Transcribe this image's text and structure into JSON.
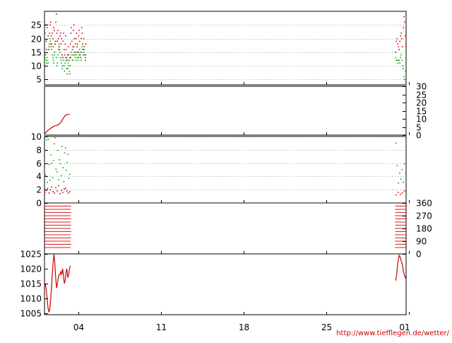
{
  "credit": "http://www.tiefflegen.de/wetter/",
  "colors": {
    "red": "#cc0000",
    "green": "#00aa00",
    "grid": "#a0a0a0",
    "frame": "#000000"
  },
  "chart_data": [
    {
      "name": "temperature",
      "type": "scatter",
      "ylim": [
        3,
        30
      ],
      "yticks": [
        5,
        10,
        15,
        20,
        25
      ],
      "y_axis_side": "left",
      "grid": true,
      "series": [
        {
          "color": "#cc0000",
          "x": [
            0,
            0.3,
            0.6,
            0.9,
            1.2,
            1.5,
            1.8,
            2.1,
            2.4,
            2.7,
            3.0,
            3.3,
            3.6,
            3.9,
            4.2,
            4.5,
            4.8,
            5.1,
            5.4,
            5.7,
            6.0,
            6.3,
            6.6,
            6.9,
            7.2,
            7.5,
            7.8,
            8.1,
            8.4,
            8.7,
            9.0,
            9.3,
            9.6,
            9.9,
            10.2,
            10.5,
            10.8,
            11.1,
            11.4,
            11.7,
            12.0,
            12.3,
            12.6,
            12.9,
            13.2,
            13.5,
            13.8,
            14.1,
            14.4,
            14.7,
            15.0,
            15.3,
            15.6,
            15.9,
            16.2,
            16.5,
            16.8,
            17.1,
            17.4,
            17.7,
            18.0,
            18.3,
            18.6,
            18.9,
            19.2,
            19.5,
            19.8,
            20.1,
            20.4,
            20.7,
            21.0,
            21.3,
            21.6,
            21.9,
            22.2,
            22.5,
            22.8,
            23.1,
            23.4,
            23.7,
            24.0
          ],
          "y": [
            13,
            22,
            25,
            19,
            16,
            24,
            25,
            21,
            16,
            17,
            22,
            25,
            26,
            21,
            18,
            22,
            20,
            17,
            24,
            23,
            18,
            19,
            26,
            29,
            22,
            19,
            23,
            20,
            17,
            16,
            21,
            22,
            18,
            20,
            14,
            13,
            19,
            22,
            16,
            14,
            18,
            21,
            16,
            13,
            12,
            14,
            17,
            14,
            12,
            13,
            18,
            22,
            24,
            19,
            16,
            17,
            23,
            25,
            20,
            15,
            18,
            20,
            22,
            17,
            18,
            15,
            21,
            23,
            19,
            14,
            13,
            20,
            24,
            22,
            18,
            16,
            20,
            17,
            14,
            12,
            18
          ]
        },
        {
          "color": "#00aa00",
          "x": [
            0,
            0.3,
            0.6,
            0.9,
            1.2,
            1.5,
            1.8,
            2.1,
            2.4,
            2.7,
            3.0,
            3.3,
            3.6,
            3.9,
            4.2,
            4.5,
            4.8,
            5.1,
            5.4,
            5.7,
            6.0,
            6.3,
            6.6,
            6.9,
            7.2,
            7.5,
            7.8,
            8.1,
            8.4,
            8.7,
            9.0,
            9.3,
            9.6,
            9.9,
            10.2,
            10.5,
            10.8,
            11.1,
            11.4,
            11.7,
            12.0,
            12.3,
            12.6,
            12.9,
            13.2,
            13.5,
            13.8,
            14.1,
            14.4,
            14.7,
            15.0,
            15.3,
            15.6,
            15.9,
            16.2,
            16.5,
            16.8,
            17.1,
            17.4,
            17.7,
            18.0,
            18.3,
            18.6,
            18.9,
            19.2,
            19.5,
            19.8,
            20.1,
            20.4,
            20.7,
            21.0,
            21.3,
            21.6,
            21.9,
            22.2,
            22.5,
            22.8,
            23.1,
            23.4,
            23.7,
            24.0
          ],
          "y": [
            12,
            13,
            14,
            12,
            11,
            13,
            12,
            11,
            16,
            18,
            20,
            19,
            18,
            17,
            16,
            14,
            13,
            12,
            11,
            14,
            15,
            18,
            19,
            13,
            10,
            11,
            14,
            16,
            18,
            17,
            15,
            13,
            12,
            11,
            9,
            10,
            13,
            12,
            10,
            8,
            11,
            13,
            12,
            9,
            7,
            9,
            11,
            10,
            8,
            7,
            10,
            13,
            15,
            14,
            12,
            12,
            14,
            17,
            15,
            14,
            13,
            12,
            14,
            15,
            13,
            12,
            13,
            14,
            16,
            15,
            13,
            12,
            15,
            17,
            16,
            14,
            15,
            16,
            14,
            13,
            14
          ]
        },
        {
          "color": "#cc0000",
          "x": [
            204.0,
            204.4,
            204.8,
            205.2,
            205.6,
            206.0,
            206.4,
            206.8,
            207.2,
            207.6,
            208.0,
            208.4,
            208.8,
            209.2,
            209.6,
            210.0
          ],
          "y": [
            15,
            19,
            20,
            18,
            17,
            16,
            19,
            21,
            22,
            20,
            17,
            24,
            28,
            26,
            21,
            17
          ]
        },
        {
          "color": "#00aa00",
          "x": [
            204.0,
            204.4,
            204.8,
            205.2,
            205.6,
            206.0,
            206.4,
            206.8,
            207.2,
            207.6,
            208.0,
            208.4,
            208.8,
            209.2,
            209.6,
            210.0
          ],
          "y": [
            13,
            12,
            12,
            11,
            12,
            12,
            11,
            13,
            14,
            12,
            10,
            9,
            6,
            5,
            8,
            13
          ]
        }
      ]
    },
    {
      "name": "cumulative-precipitation",
      "type": "line",
      "ylim": [
        0,
        30
      ],
      "yticks": [
        0,
        5,
        10,
        15,
        20,
        25,
        30
      ],
      "y_axis_side": "right",
      "grid": false,
      "series": [
        {
          "color": "#cc0000",
          "x": [
            0.1,
            0.6,
            1.1,
            1.6,
            2.1,
            2.6,
            3.1,
            3.6,
            4.1,
            4.6,
            5.1,
            5.6,
            6.1,
            6.6,
            7.1,
            7.6,
            8.1,
            8.6,
            9.1,
            9.6,
            10.1,
            10.6,
            11.1,
            11.6,
            12.1,
            12.6,
            13.1,
            13.6,
            14.1,
            14.6
          ],
          "y": [
            1.0,
            1.5,
            1.8,
            2.6,
            3.0,
            3.4,
            3.8,
            4.2,
            4.5,
            4.7,
            5.2,
            5.5,
            5.7,
            5.8,
            6.0,
            6.2,
            6.4,
            6.9,
            7.4,
            8.0,
            8.9,
            9.7,
            10.6,
            11.4,
            12.0,
            12.4,
            12.6,
            12.7,
            12.8,
            12.8
          ]
        }
      ]
    },
    {
      "name": "wind-speed",
      "type": "scatter",
      "ylim": [
        0,
        10
      ],
      "yticks": [
        0,
        2,
        4,
        6,
        8,
        10
      ],
      "y_axis_side": "left",
      "grid": true,
      "series": [
        {
          "color": "#00aa00",
          "x": [
            0.2,
            0.7,
            1.2,
            1.7,
            2.2,
            2.7,
            3.2,
            3.7,
            4.2,
            4.7,
            5.2,
            5.7,
            6.2,
            6.7,
            7.2,
            7.7,
            8.2,
            8.7,
            9.2,
            9.7,
            10.2,
            10.7,
            11.2,
            11.7,
            12.2,
            12.7,
            13.2,
            13.7,
            14.2,
            14.7,
            204.2,
            204.9,
            205.6,
            206.3,
            207.0,
            207.7,
            208.4,
            209.1,
            209.8
          ],
          "y": [
            7.7,
            4.2,
            9.5,
            3.1,
            9.6,
            5.8,
            3.4,
            7.2,
            6.0,
            3.8,
            6.4,
            8.9,
            9.8,
            5.1,
            4.7,
            7.9,
            3.5,
            6.5,
            5.9,
            4.1,
            8.5,
            5.3,
            3.2,
            7.5,
            8.3,
            4.9,
            6.1,
            7.3,
            3.7,
            4.3,
            9.0,
            5.6,
            3.0,
            4.5,
            3.6,
            5.0,
            3.1,
            5.9,
            4.4
          ]
        },
        {
          "color": "#cc0000",
          "x": [
            0.2,
            1.0,
            1.8,
            2.6,
            3.4,
            4.2,
            5.0,
            5.8,
            6.6,
            7.4,
            8.2,
            9.0,
            9.8,
            10.6,
            11.4,
            12.2,
            13.0,
            13.8,
            14.6,
            204.2,
            205.4,
            206.6,
            207.8,
            209.0
          ],
          "y": [
            1.6,
            1.9,
            2.2,
            1.5,
            2.0,
            2.4,
            1.7,
            1.5,
            2.3,
            1.8,
            2.6,
            1.4,
            1.9,
            1.6,
            2.1,
            2.2,
            1.8,
            1.5,
            1.7,
            1.2,
            1.6,
            1.3,
            1.5,
            1.8
          ]
        }
      ]
    },
    {
      "name": "wind-direction",
      "type": "scatter",
      "ylim": [
        0,
        360
      ],
      "yticks": [
        0,
        90,
        180,
        270,
        360
      ],
      "y_axis_side": "right",
      "grid": false,
      "series": [
        {
          "color": "#cc0000",
          "levels": [
            338,
            315,
            293,
            270,
            248,
            225,
            203,
            180,
            158,
            135,
            113,
            90,
            68,
            45
          ],
          "ranges": [
            [
              0,
              15
            ],
            [
              203.5,
              210
            ]
          ]
        }
      ]
    },
    {
      "name": "pressure",
      "type": "line",
      "ylim": [
        1004.5,
        1025
      ],
      "yticks": [
        1005,
        1010,
        1015,
        1020,
        1025
      ],
      "y_axis_side": "left",
      "grid": false,
      "series": [
        {
          "color": "#cc0000",
          "x": [
            0,
            0.5,
            1.0,
            1.5,
            2.0,
            2.5,
            3.0,
            3.5,
            4.0,
            4.5,
            5.0,
            5.5,
            6.0,
            6.5,
            7.0,
            7.5,
            8.0,
            8.5,
            9.0,
            9.5,
            10.0,
            10.5,
            11.0,
            11.5,
            12.0,
            12.5,
            13.0,
            13.5,
            14.0,
            14.5,
            15.0
          ],
          "y": [
            1014.0,
            1015.0,
            1013.0,
            1010.0,
            1007.0,
            1005.5,
            1006.0,
            1009.0,
            1013.0,
            1018.0,
            1022.0,
            1025.0,
            1022.0,
            1017.0,
            1013.5,
            1015.0,
            1017.0,
            1018.0,
            1018.0,
            1019.0,
            1018.0,
            1020.0,
            1018.0,
            1015.0,
            1016.0,
            1019.0,
            1020.0,
            1017.0,
            1018.0,
            1020.0,
            1021.0
          ]
        },
        {
          "color": "#cc0000",
          "x": [
            204.0,
            204.5,
            205.0,
            205.5,
            206.0,
            206.5,
            207.0,
            207.5,
            208.0,
            208.5,
            209.0,
            209.5,
            210.0
          ],
          "y": [
            1016.0,
            1018.0,
            1021.0,
            1023.0,
            1024.5,
            1024.0,
            1023.0,
            1022.0,
            1021.0,
            1019.0,
            1018.0,
            1017.0,
            1017.5
          ]
        }
      ]
    }
  ],
  "x_axis": {
    "xlim": [
      0,
      210
    ],
    "ticks": [
      {
        "value": 19.5,
        "label": "04"
      },
      {
        "value": 67.5,
        "label": "11"
      },
      {
        "value": 115.5,
        "label": "18"
      },
      {
        "value": 163.5,
        "label": "25"
      },
      {
        "value": 211.5,
        "label": "01"
      }
    ]
  }
}
